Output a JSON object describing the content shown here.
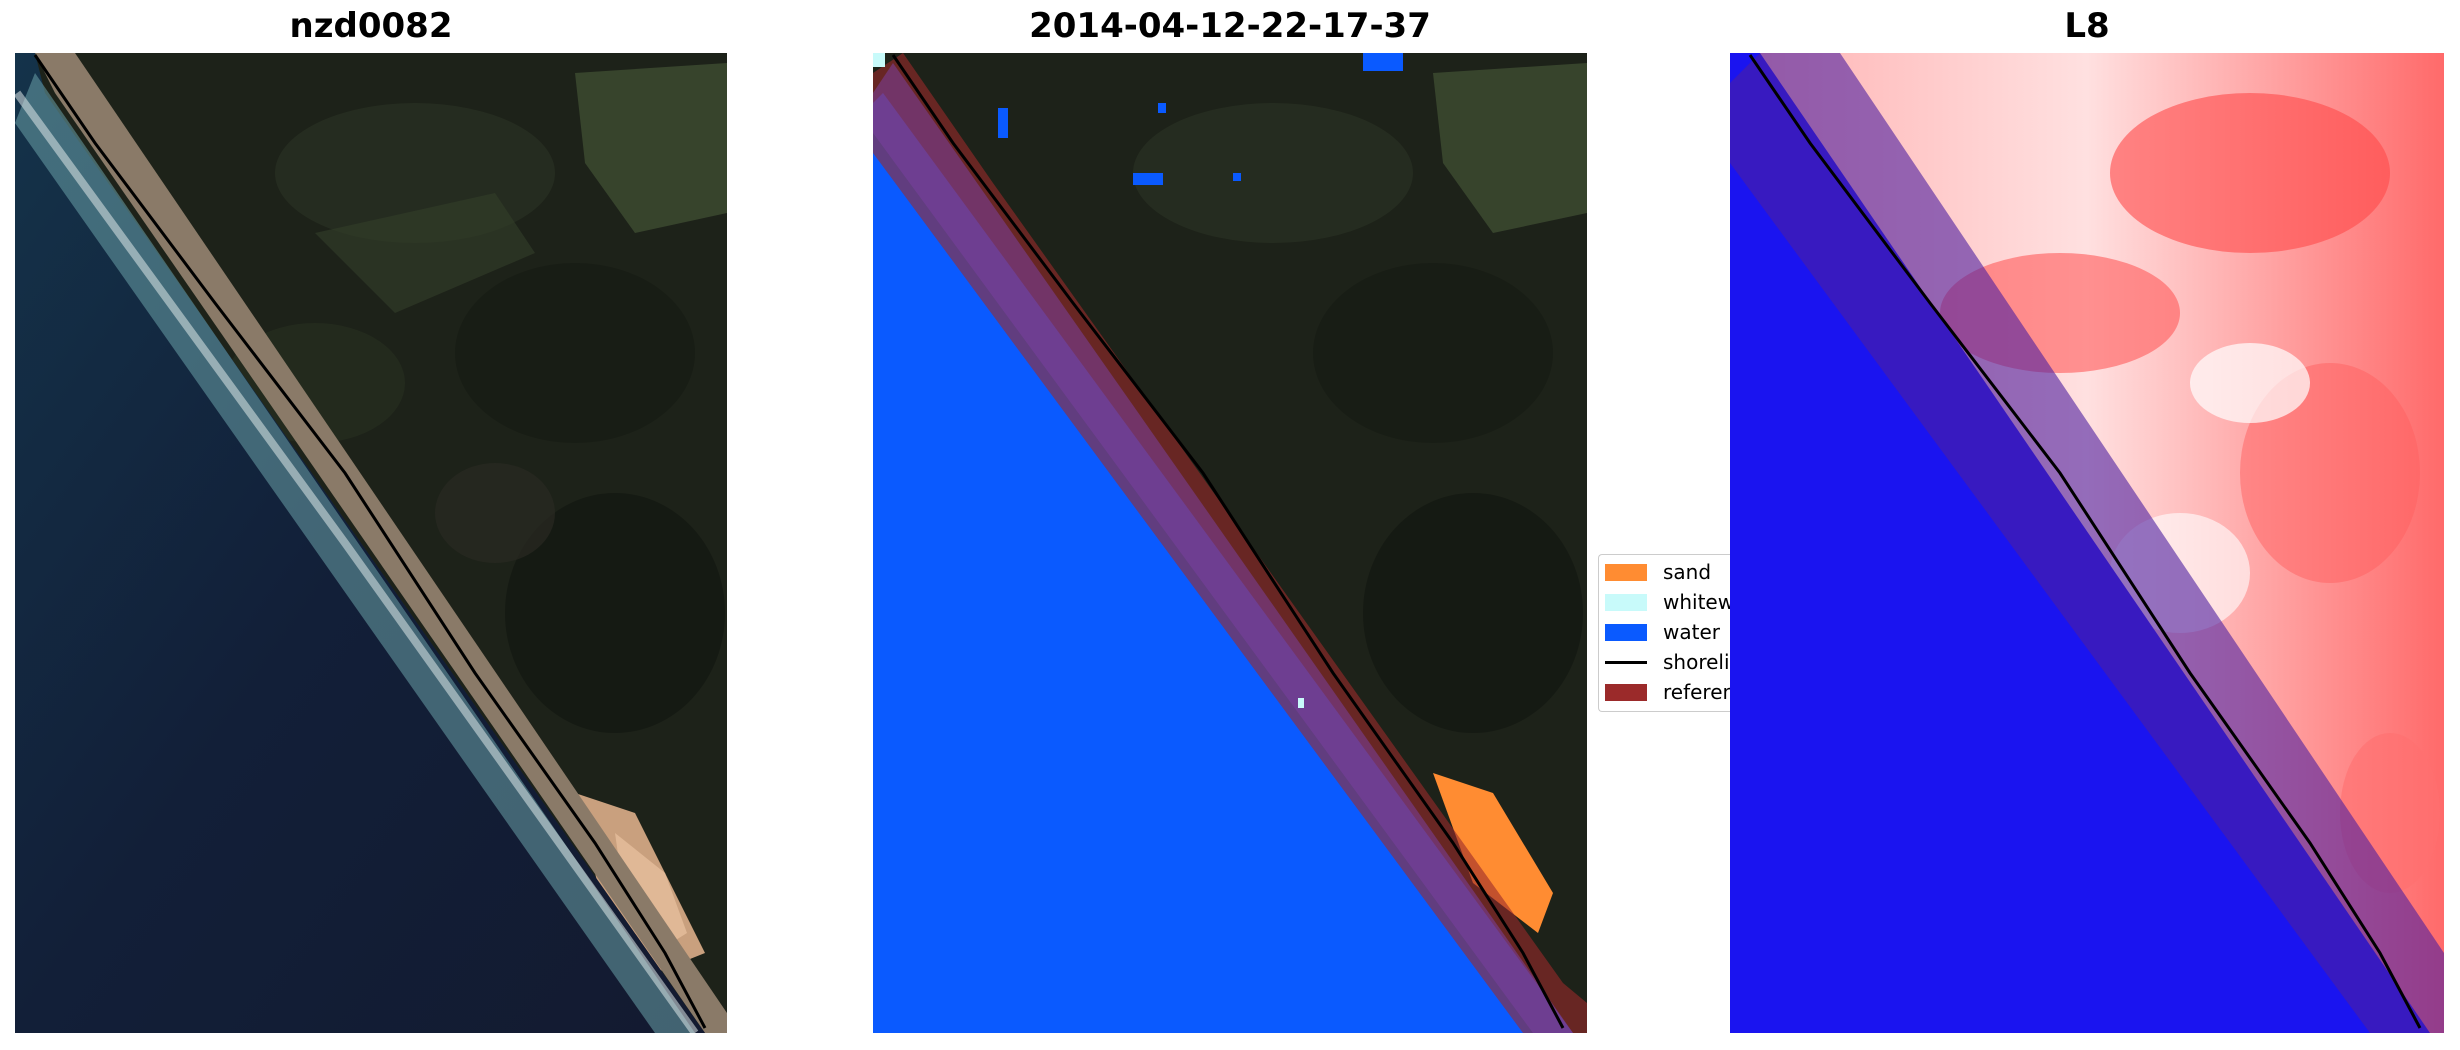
{
  "figure": {
    "panels": [
      {
        "title": "nzd0082"
      },
      {
        "title": "2014-04-12-22-17-37"
      },
      {
        "title": "L8"
      }
    ],
    "legend": [
      {
        "label": "sand",
        "color": "#ff8c32",
        "kind": "patch"
      },
      {
        "label": "whitewater",
        "color": "#c8fafa",
        "kind": "patch"
      },
      {
        "label": "water",
        "color": "#0a5aff",
        "kind": "patch"
      },
      {
        "label": "shoreline",
        "color": "#000000",
        "kind": "line"
      },
      {
        "label": "reference shoreline buffer",
        "color": "#9b2a2a",
        "kind": "patch"
      }
    ]
  }
}
